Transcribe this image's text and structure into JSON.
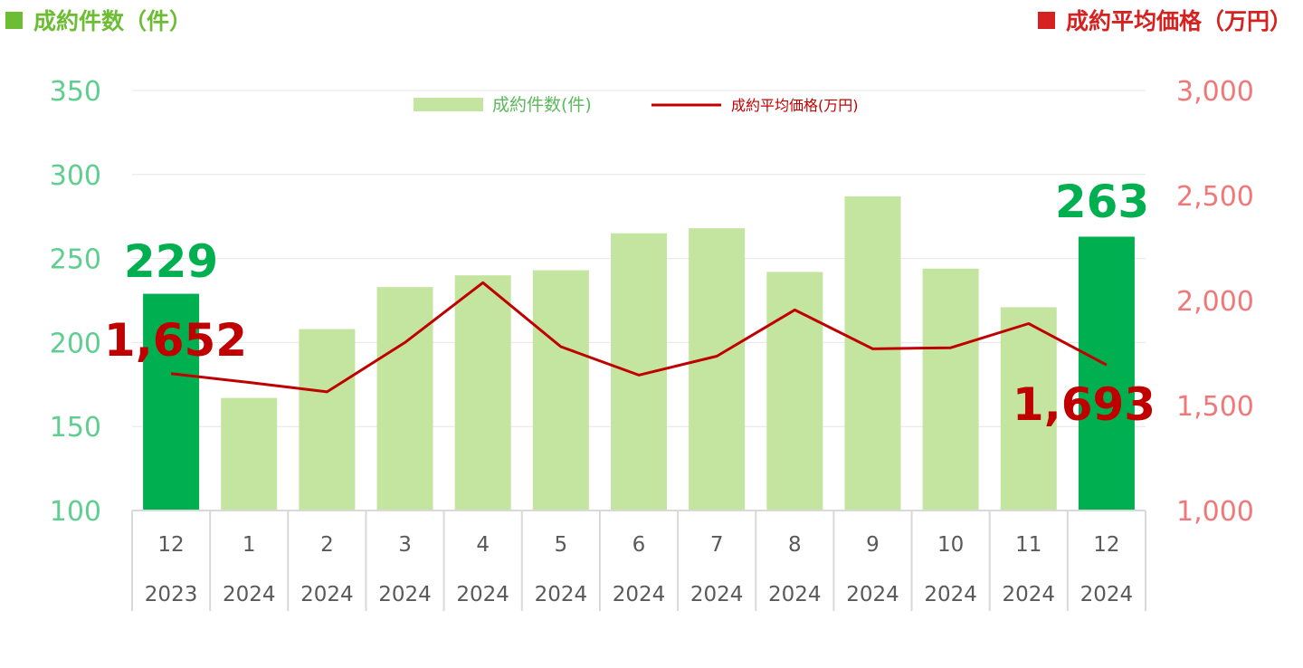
{
  "header": {
    "left_title": "成約件数（件）",
    "right_title": "成約平均価格（万円）"
  },
  "colors": {
    "bar": "#c4e59f",
    "bar_highlight": "#00b050",
    "line": "#c00000",
    "left_axis": "#5fcf8f",
    "right_axis": "#f07878",
    "left_header": "#6cbd33",
    "right_header": "#d62121",
    "grid": "#e6e6e6"
  },
  "chart_data": {
    "type": "bar+line",
    "categories": [
      {
        "month": "12",
        "year": "2023"
      },
      {
        "month": "1",
        "year": "2024"
      },
      {
        "month": "2",
        "year": "2024"
      },
      {
        "month": "3",
        "year": "2024"
      },
      {
        "month": "4",
        "year": "2024"
      },
      {
        "month": "5",
        "year": "2024"
      },
      {
        "month": "6",
        "year": "2024"
      },
      {
        "month": "7",
        "year": "2024"
      },
      {
        "month": "8",
        "year": "2024"
      },
      {
        "month": "9",
        "year": "2024"
      },
      {
        "month": "10",
        "year": "2024"
      },
      {
        "month": "11",
        "year": "2024"
      },
      {
        "month": "12",
        "year": "2024"
      }
    ],
    "series": [
      {
        "name": "成約件数(件)",
        "type": "bar",
        "axis": "left",
        "values": [
          229,
          167,
          208,
          233,
          240,
          243,
          265,
          268,
          242,
          287,
          244,
          221,
          263
        ],
        "highlight": [
          true,
          false,
          false,
          false,
          false,
          false,
          false,
          false,
          false,
          false,
          false,
          false,
          true
        ]
      },
      {
        "name": "成約平均価格(万円)",
        "type": "line",
        "axis": "right",
        "values": [
          1652,
          1610,
          1565,
          1800,
          2085,
          1780,
          1645,
          1735,
          1955,
          1770,
          1775,
          1890,
          1693
        ]
      }
    ],
    "y_left": {
      "min": 100,
      "max": 350,
      "ticks": [
        "350",
        "300",
        "250",
        "200",
        "150",
        "100"
      ]
    },
    "y_right": {
      "min": 1000,
      "max": 3000,
      "ticks": [
        "3,000",
        "2,500",
        "2,000",
        "1,500",
        "1,000"
      ]
    },
    "annotations": {
      "first_count": "229",
      "last_count": "263",
      "first_price": "1,652",
      "last_price": "1,693"
    },
    "legend_position": "top-center",
    "grid": true
  }
}
